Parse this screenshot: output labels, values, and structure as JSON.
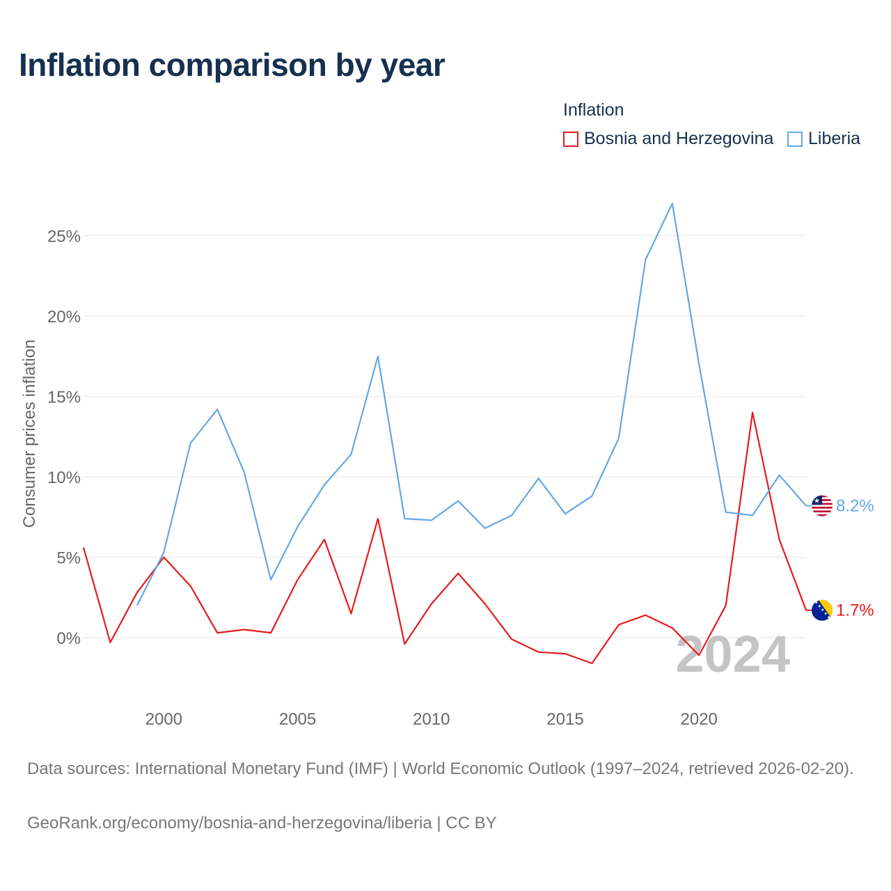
{
  "title": "Inflation comparison by year",
  "legend": {
    "title": "Inflation",
    "items": [
      {
        "label": "Bosnia and Herzegovina",
        "color": "#e41a1c"
      },
      {
        "label": "Liberia",
        "color": "#64a6e6"
      }
    ]
  },
  "chart_data": {
    "type": "line",
    "ylabel": "Consumer prices inflation",
    "xlabel": "",
    "xlim": [
      1997,
      2024
    ],
    "ylim": [
      -5,
      28
    ],
    "x_ticks": [
      2000,
      2005,
      2010,
      2015,
      2020
    ],
    "x_tick_labels": [
      "2000",
      "2005",
      "2010",
      "2015",
      "2020"
    ],
    "y_ticks": [
      0,
      5,
      10,
      15,
      20,
      25
    ],
    "y_tick_labels": [
      "0%",
      "5%",
      "10%",
      "15%",
      "20%",
      "25%"
    ],
    "grid": true,
    "watermark_year": "2024",
    "series": [
      {
        "name": "Bosnia and Herzegovina",
        "color": "#e41a1c",
        "flag": "bosnia-and-herzegovina",
        "end_label": "1.7%",
        "x": [
          1997,
          1998,
          1999,
          2000,
          2001,
          2002,
          2003,
          2004,
          2005,
          2006,
          2007,
          2008,
          2009,
          2010,
          2011,
          2012,
          2013,
          2014,
          2015,
          2016,
          2017,
          2018,
          2019,
          2020,
          2021,
          2022,
          2023,
          2024
        ],
        "values": [
          5.6,
          -0.3,
          2.8,
          5.0,
          3.2,
          0.3,
          0.5,
          0.3,
          3.6,
          6.1,
          1.5,
          7.4,
          -0.4,
          2.1,
          4.0,
          2.1,
          -0.1,
          -0.9,
          -1.0,
          -1.6,
          0.8,
          1.4,
          0.6,
          -1.1,
          2.0,
          14.0,
          6.1,
          1.7
        ]
      },
      {
        "name": "Liberia",
        "color": "#64a6e6",
        "flag": "liberia",
        "end_label": "8.2%",
        "x": [
          1999,
          2000,
          2001,
          2002,
          2003,
          2004,
          2005,
          2006,
          2007,
          2008,
          2009,
          2010,
          2011,
          2012,
          2013,
          2014,
          2015,
          2016,
          2017,
          2018,
          2019,
          2020,
          2021,
          2022,
          2023,
          2024
        ],
        "values": [
          2.0,
          5.3,
          12.1,
          14.2,
          10.3,
          3.6,
          6.9,
          9.5,
          11.4,
          17.5,
          7.4,
          7.3,
          8.5,
          6.8,
          7.6,
          9.9,
          7.7,
          8.8,
          12.4,
          23.5,
          27.0,
          17.0,
          7.8,
          7.6,
          10.1,
          8.2
        ]
      }
    ]
  },
  "footer": {
    "sources": "Data sources: International Monetary Fund (IMF) | World Economic Outlook (1997–2024, retrieved 2026-02-20).",
    "credit": "GeoRank.org/economy/bosnia-and-herzegovina/liberia | CC BY"
  }
}
